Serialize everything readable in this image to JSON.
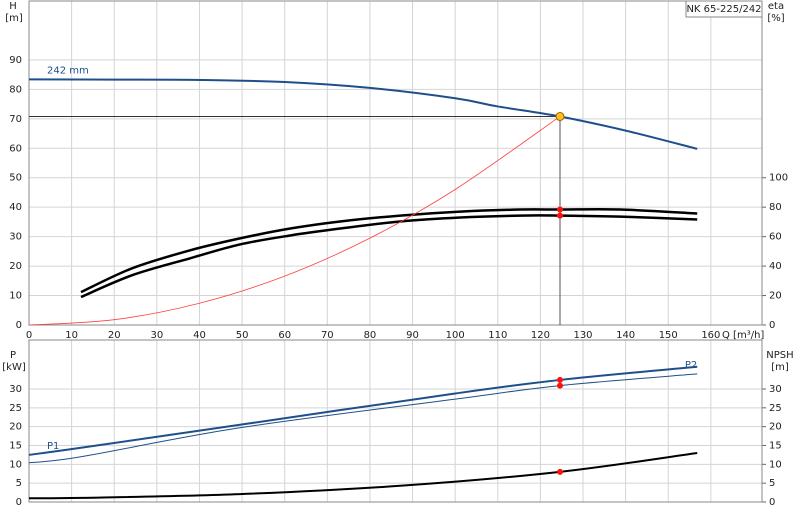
{
  "chart_data": [
    {
      "type": "line",
      "title": "NK 65-225/242",
      "y_label": "H",
      "y_unit": "[m]",
      "y2_label": "eta",
      "y2_unit": "[%]",
      "x_label": "Q [m³/h]",
      "xlim": [
        0,
        172
      ],
      "xticks": [
        0,
        10,
        20,
        30,
        40,
        50,
        60,
        70,
        80,
        90,
        100,
        110,
        120,
        130,
        140,
        150,
        160
      ],
      "ylim": [
        0,
        110
      ],
      "yticks": [
        0,
        10,
        20,
        30,
        40,
        50,
        60,
        70,
        80,
        90
      ],
      "y2lim": [
        0,
        220
      ],
      "y2ticks": [
        0,
        20,
        40,
        60,
        80,
        100
      ],
      "grid": true,
      "series": [
        {
          "name": "242 mm",
          "color": "#1f4f8b",
          "width": 2,
          "x": [
            0,
            20,
            40,
            60,
            80,
            100,
            110,
            124.6,
            140,
            156.8
          ],
          "values": [
            83.4,
            83.3,
            83.2,
            82.5,
            80.5,
            77,
            74.2,
            70.8,
            66,
            59.8
          ]
        },
        {
          "color": "#000000",
          "width": 2.5,
          "axis": "y2",
          "x": [
            12.2,
            24.2,
            37.8,
            49.5,
            61.3,
            73,
            87.1,
            101.2,
            115.3,
            124.6,
            138.7,
            156.8
          ],
          "values": [
            22.3,
            38.5,
            50.7,
            58.8,
            65.5,
            70.3,
            74.3,
            77,
            78.4,
            78.4,
            78.4,
            75.7
          ]
        },
        {
          "color": "#000000",
          "width": 2.5,
          "axis": "y2",
          "x": [
            12.2,
            24.2,
            37.8,
            49.5,
            61.3,
            73,
            87.1,
            101.2,
            115.3,
            124.6,
            138.7,
            156.8
          ],
          "values": [
            19,
            33.8,
            45.3,
            54.7,
            60.8,
            65.5,
            70.3,
            73,
            74.3,
            74.3,
            73.6,
            71.6
          ]
        },
        {
          "color": "#ff4040",
          "width": 0.8,
          "x": [
            0,
            20,
            40,
            60,
            80,
            100,
            124.6
          ],
          "values": [
            0,
            1.8,
            7.4,
            16.6,
            29.5,
            46,
            70.8
          ]
        }
      ],
      "duty": {
        "x": 124.6,
        "value": 70.8,
        "y2_values": [
          78.4,
          74.3
        ]
      }
    },
    {
      "type": "line",
      "y_label": "P",
      "y_unit": "[kW]",
      "y2_label": "NPSH",
      "y2_unit": "[m]",
      "xlim": [
        0,
        172
      ],
      "xticks": [
        0,
        10,
        20,
        30,
        40,
        50,
        60,
        70,
        80,
        90,
        100,
        110,
        120,
        130,
        140,
        150,
        160
      ],
      "ylim": [
        0,
        43
      ],
      "yticks": [
        0,
        5,
        10,
        15,
        20,
        25,
        30
      ],
      "y2lim": [
        0,
        43
      ],
      "y2ticks": [
        0,
        5,
        10,
        15,
        20,
        25,
        30
      ],
      "grid": true,
      "series": [
        {
          "name": "P1",
          "color": "#1f4f8b",
          "width": 2,
          "x": [
            0,
            12.2,
            49.5,
            100,
            124.6,
            156.8
          ],
          "values": [
            12.5,
            14.4,
            20.5,
            28.8,
            32.4,
            35.9
          ]
        },
        {
          "name": "P2",
          "color": "#1f4f8b",
          "width": 1,
          "x": [
            0,
            12.2,
            49.5,
            100,
            124.6,
            156.8
          ],
          "values": [
            10.4,
            12,
            19.7,
            27.3,
            30.9,
            34
          ]
        },
        {
          "color": "#000000",
          "width": 2,
          "axis": "y2",
          "x": [
            0,
            12.2,
            49.5,
            87.1,
            124.6,
            156.8
          ],
          "values": [
            1,
            1.1,
            2.1,
            4.3,
            8,
            13
          ]
        }
      ],
      "duty": {
        "x": 124.6,
        "values": [
          32.4,
          30.9
        ],
        "y2_values": [
          8
        ]
      }
    }
  ]
}
